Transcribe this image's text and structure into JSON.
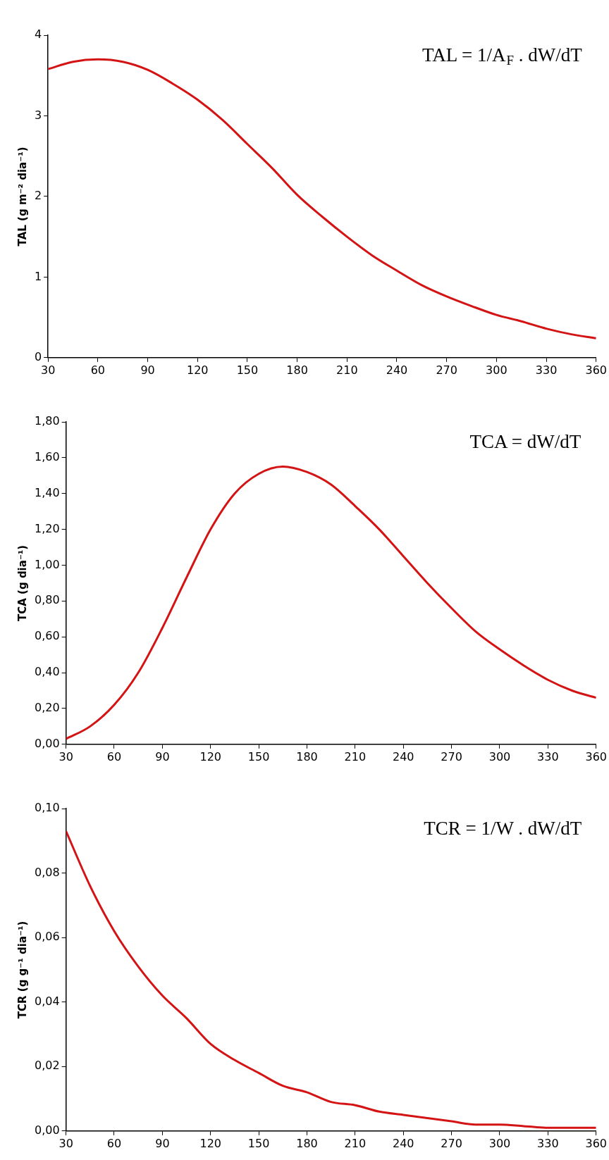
{
  "chart_data": [
    {
      "type": "line",
      "ylabel": "TAL (g m⁻² dia⁻¹)",
      "annotations": [
        "TAL = 1/A$_{F}$ . dW/dT"
      ],
      "x": [
        30,
        45,
        60,
        75,
        90,
        105,
        120,
        135,
        150,
        165,
        180,
        195,
        210,
        225,
        240,
        255,
        270,
        285,
        300,
        315,
        330,
        345,
        360
      ],
      "series": [
        {
          "color": "#d41414",
          "values": [
            3.58,
            3.67,
            3.7,
            3.67,
            3.57,
            3.4,
            3.2,
            2.95,
            2.65,
            2.35,
            2.02,
            1.75,
            1.5,
            1.27,
            1.08,
            0.9,
            0.76,
            0.64,
            0.53,
            0.45,
            0.36,
            0.29,
            0.24
          ]
        }
      ],
      "xlim": [
        30,
        360
      ],
      "xticks": [
        30,
        60,
        90,
        120,
        150,
        180,
        210,
        240,
        270,
        300,
        330,
        360
      ],
      "ylim": [
        0,
        4
      ],
      "yticks": [
        0,
        1,
        2,
        3,
        4
      ],
      "grid": false,
      "legend": false,
      "marker": "none",
      "line_style": "solid"
    },
    {
      "type": "line",
      "ylabel": "TCA (g dia⁻¹)",
      "annotations": [
        "TCA = dW/dT"
      ],
      "x": [
        30,
        45,
        60,
        75,
        90,
        105,
        120,
        135,
        150,
        165,
        180,
        195,
        210,
        225,
        240,
        255,
        270,
        285,
        300,
        315,
        330,
        345,
        360
      ],
      "series": [
        {
          "color": "#d41414",
          "values": [
            0.03,
            0.1,
            0.22,
            0.4,
            0.65,
            0.93,
            1.2,
            1.4,
            1.51,
            1.55,
            1.52,
            1.45,
            1.33,
            1.2,
            1.05,
            0.9,
            0.76,
            0.63,
            0.53,
            0.44,
            0.36,
            0.3,
            0.26
          ]
        }
      ],
      "xlim": [
        30,
        360
      ],
      "xticks": [
        30,
        60,
        90,
        120,
        150,
        180,
        210,
        240,
        270,
        300,
        330,
        360
      ],
      "ylim": [
        0,
        1.8
      ],
      "yticks": [
        {
          "value": 0,
          "label": "0,00"
        },
        {
          "value": 0.2,
          "label": "0,20"
        },
        {
          "value": 0.4,
          "label": "0,40"
        },
        {
          "value": 0.6,
          "label": "0,60"
        },
        {
          "value": 0.8,
          "label": "0,80"
        },
        {
          "value": 1,
          "label": "1,00"
        },
        {
          "value": 1.2,
          "label": "1,20"
        },
        {
          "value": 1.4,
          "label": "1,40"
        },
        {
          "value": 1.6,
          "label": "1,60"
        },
        {
          "value": 1.8,
          "label": "1,80"
        }
      ],
      "grid": false,
      "legend": false,
      "marker": "none",
      "line_style": "solid"
    },
    {
      "type": "line",
      "ylabel": "TCR (g g⁻¹ dia⁻¹)",
      "annotations": [
        "TCR = 1/W . dW/dT"
      ],
      "x": [
        30,
        45,
        60,
        75,
        90,
        105,
        120,
        135,
        150,
        165,
        180,
        195,
        210,
        225,
        240,
        255,
        270,
        285,
        300,
        315,
        330,
        345,
        360
      ],
      "series": [
        {
          "color": "#d41414",
          "values": [
            0.093,
            0.076,
            0.062,
            0.051,
            0.042,
            0.035,
            0.027,
            0.022,
            0.018,
            0.014,
            0.012,
            0.009,
            0.008,
            0.006,
            0.005,
            0.004,
            0.003,
            0.002,
            0.002,
            0.0015,
            0.001,
            0.001,
            0.001
          ]
        }
      ],
      "xlim": [
        30,
        360
      ],
      "xticks": [
        30,
        60,
        90,
        120,
        150,
        180,
        210,
        240,
        270,
        300,
        330,
        360
      ],
      "ylim": [
        0,
        0.1
      ],
      "yticks": [
        {
          "value": 0,
          "label": "0,00"
        },
        {
          "value": 0.02,
          "label": "0,02"
        },
        {
          "value": 0.04,
          "label": "0,04"
        },
        {
          "value": 0.06,
          "label": "0,06"
        },
        {
          "value": 0.08,
          "label": "0,08"
        },
        {
          "value": 0.1,
          "label": "0,10"
        }
      ],
      "grid": false,
      "legend": false,
      "marker": "none",
      "line_style": "solid"
    }
  ]
}
